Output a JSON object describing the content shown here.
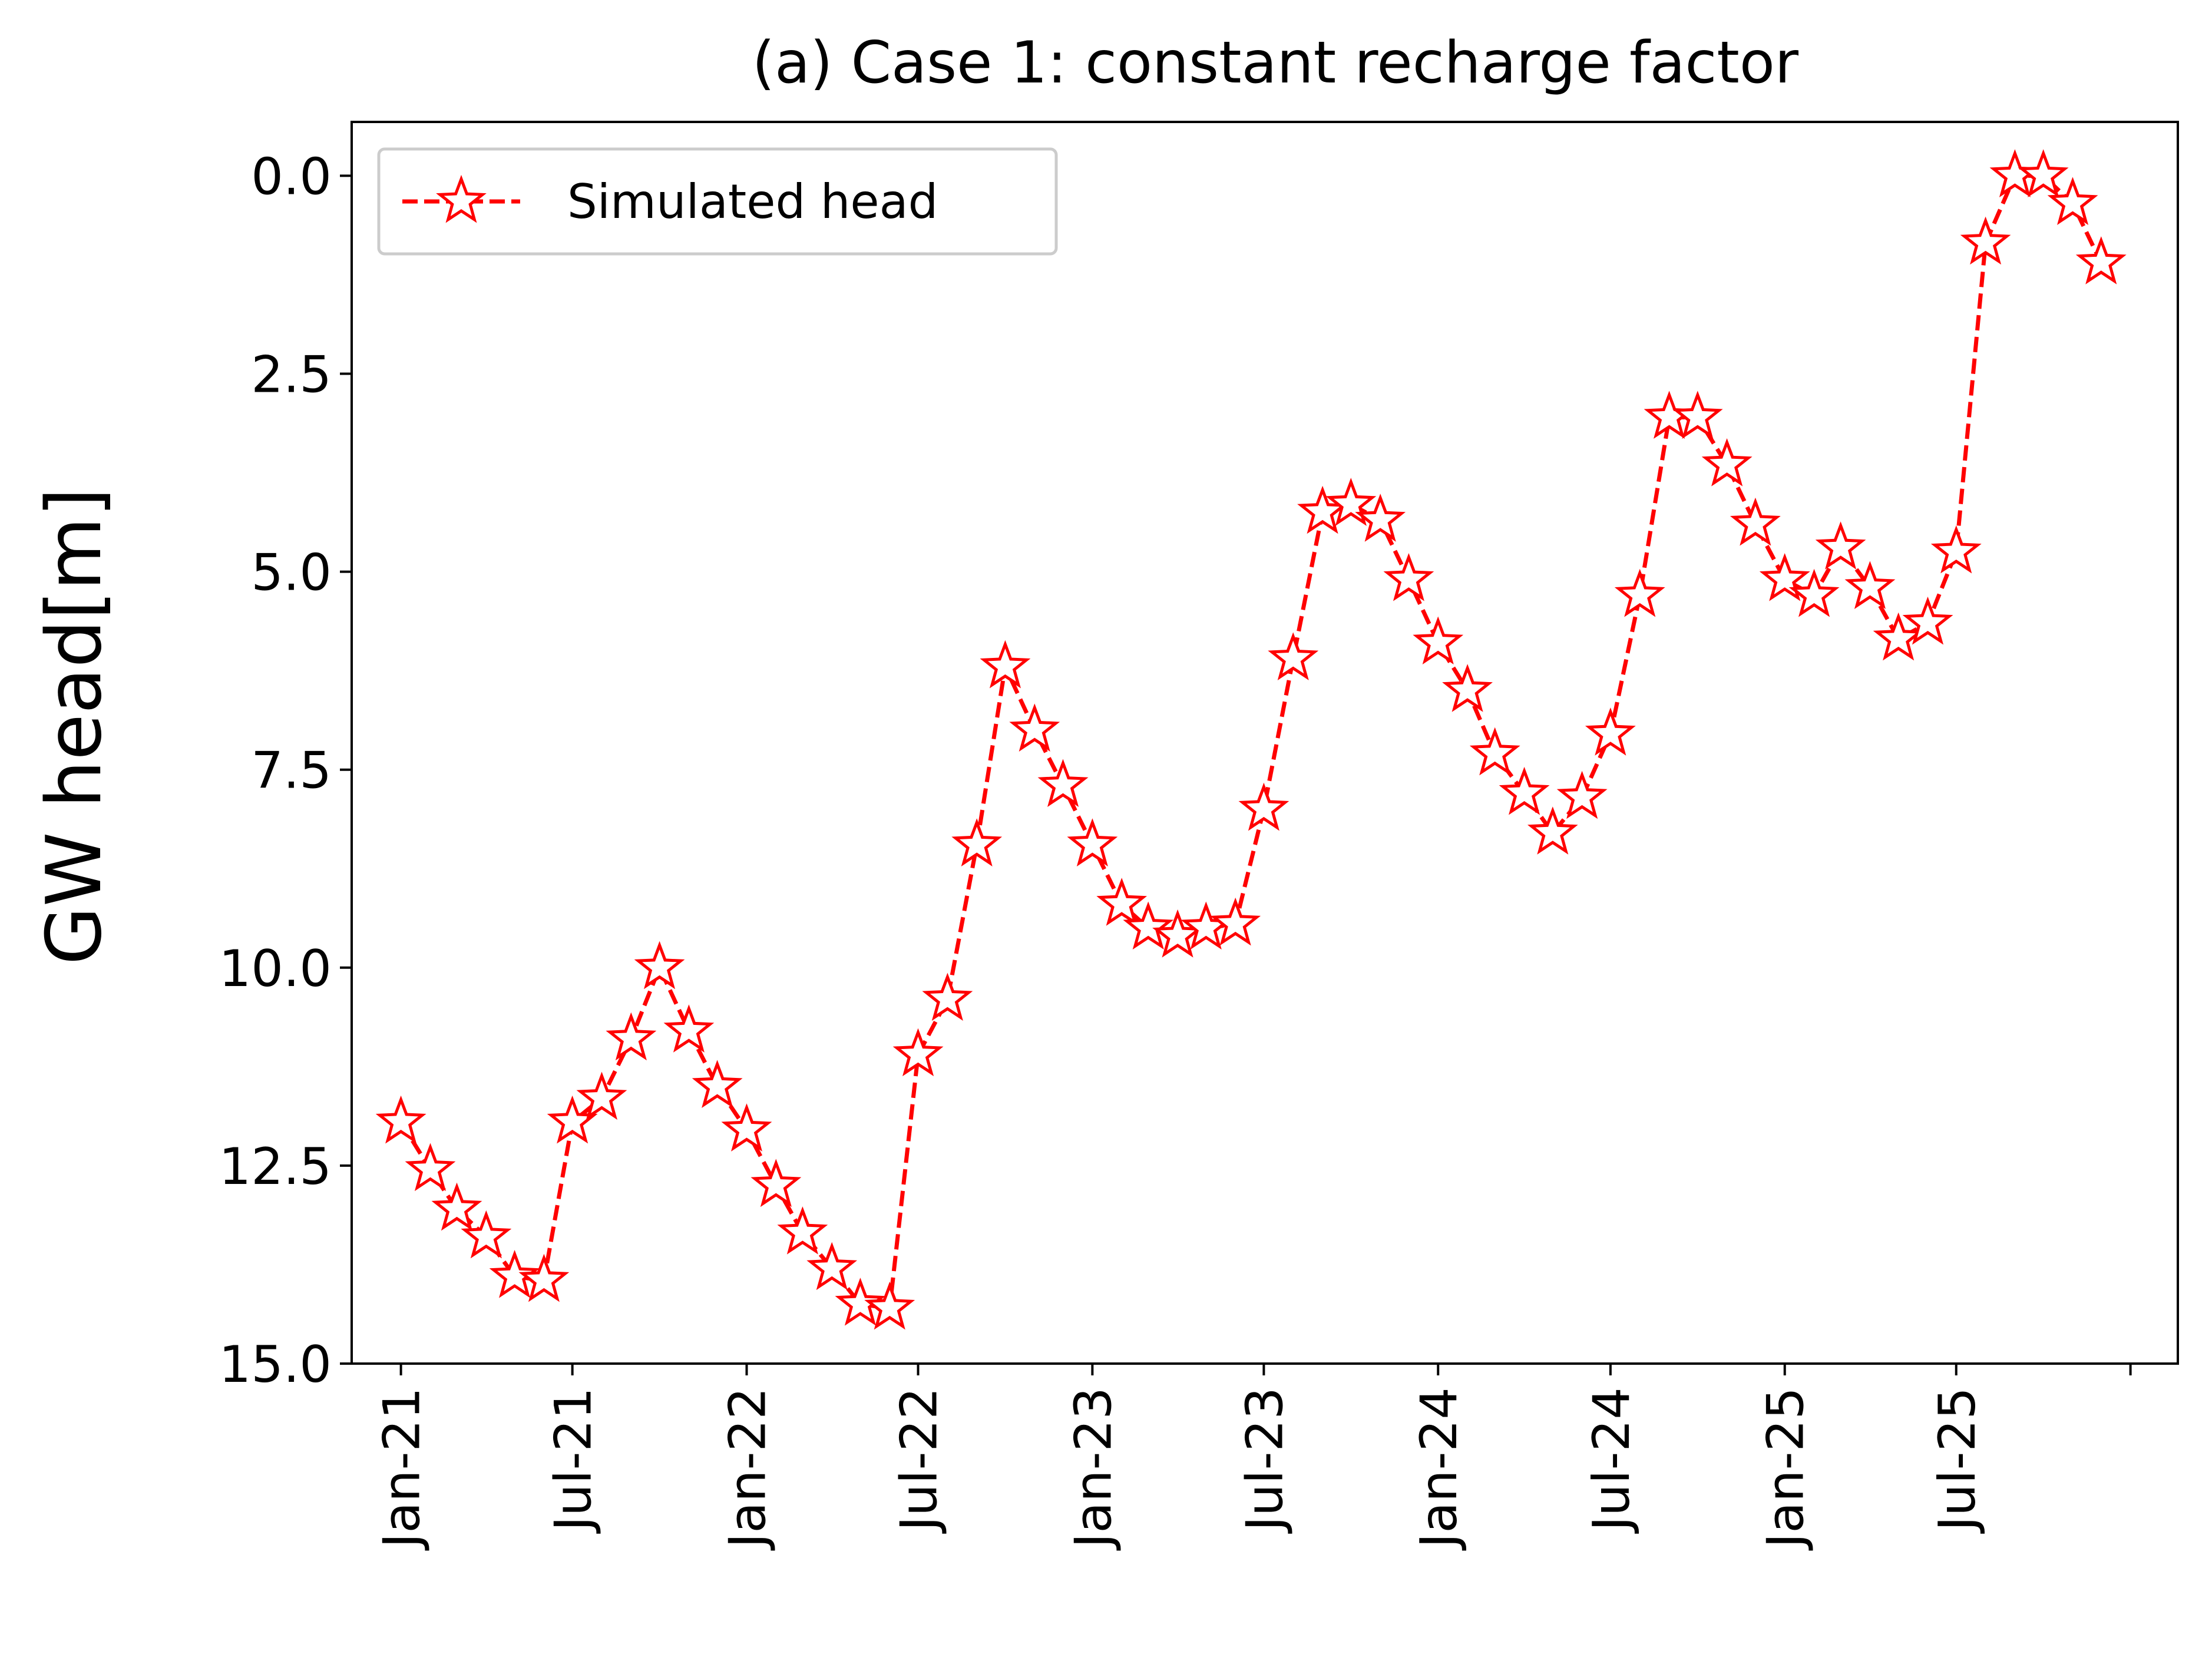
{
  "chart_data": {
    "type": "line",
    "title": "(a) Case 1: constant recharge factor",
    "xlabel": "",
    "ylabel": "GW head[m]",
    "ylim": [
      15.0,
      -0.68
    ],
    "y_inverted": true,
    "y_ticks": [
      "0.0",
      "2.5",
      "5.0",
      "7.5",
      "10.0",
      "12.5",
      "15.0"
    ],
    "y_tick_values": [
      0,
      2.5,
      5,
      7.5,
      10,
      12.5,
      15
    ],
    "x_tick_labels": [
      "Jan-21",
      "Jul-21",
      "Jan-22",
      "Jul-22",
      "Jan-23",
      "Jul-23",
      "Jan-24",
      "Jul-24",
      "Jan-25",
      "Jul-25",
      ""
    ],
    "x_tick_dates": [
      "2021-01",
      "2021-07",
      "2022-01",
      "2022-07",
      "2023-01",
      "2023-07",
      "2024-01",
      "2024-07",
      "2025-01",
      "2025-07",
      "2026-01"
    ],
    "x_range": [
      "2020-11-10",
      "2026-02-20"
    ],
    "grid": false,
    "legend": {
      "position": "top-left",
      "entries": [
        "Simulated head"
      ]
    },
    "series": [
      {
        "name": "Simulated head",
        "color": "#ff0000",
        "line_style": "dashed",
        "marker": "star-open",
        "x": [
          "2021-01",
          "2021-02",
          "2021-03",
          "2021-04",
          "2021-05",
          "2021-06",
          "2021-07",
          "2021-08",
          "2021-09",
          "2021-10",
          "2021-11",
          "2021-12",
          "2022-01",
          "2022-02",
          "2022-03",
          "2022-04",
          "2022-05",
          "2022-06",
          "2022-07",
          "2022-08",
          "2022-09",
          "2022-10",
          "2022-11",
          "2022-12",
          "2023-01",
          "2023-02",
          "2023-03",
          "2023-04",
          "2023-05",
          "2023-06",
          "2023-07",
          "2023-08",
          "2023-09",
          "2023-10",
          "2023-11",
          "2023-12",
          "2024-01",
          "2024-02",
          "2024-03",
          "2024-04",
          "2024-05",
          "2024-06",
          "2024-07",
          "2024-08",
          "2024-09",
          "2024-10",
          "2024-11",
          "2024-12",
          "2025-01",
          "2025-02",
          "2025-03",
          "2025-04",
          "2025-05",
          "2025-06",
          "2025-07",
          "2025-08",
          "2025-09",
          "2025-10",
          "2025-11",
          "2025-12"
        ],
        "values": [
          11.95,
          12.55,
          13.05,
          13.4,
          13.9,
          13.95,
          11.95,
          11.65,
          10.9,
          10.0,
          10.8,
          11.5,
          12.05,
          12.75,
          13.35,
          13.8,
          14.25,
          14.3,
          11.1,
          10.4,
          8.45,
          6.2,
          7.0,
          7.7,
          8.45,
          9.2,
          9.5,
          9.6,
          9.5,
          9.45,
          8.0,
          6.1,
          4.25,
          4.15,
          4.35,
          5.1,
          5.9,
          6.5,
          7.3,
          7.8,
          8.3,
          7.85,
          7.05,
          5.3,
          3.05,
          3.05,
          3.65,
          4.4,
          5.1,
          5.3,
          4.7,
          5.2,
          5.85,
          5.65,
          4.75,
          0.85,
          0.0,
          0.0,
          0.35,
          1.1
        ]
      }
    ]
  }
}
